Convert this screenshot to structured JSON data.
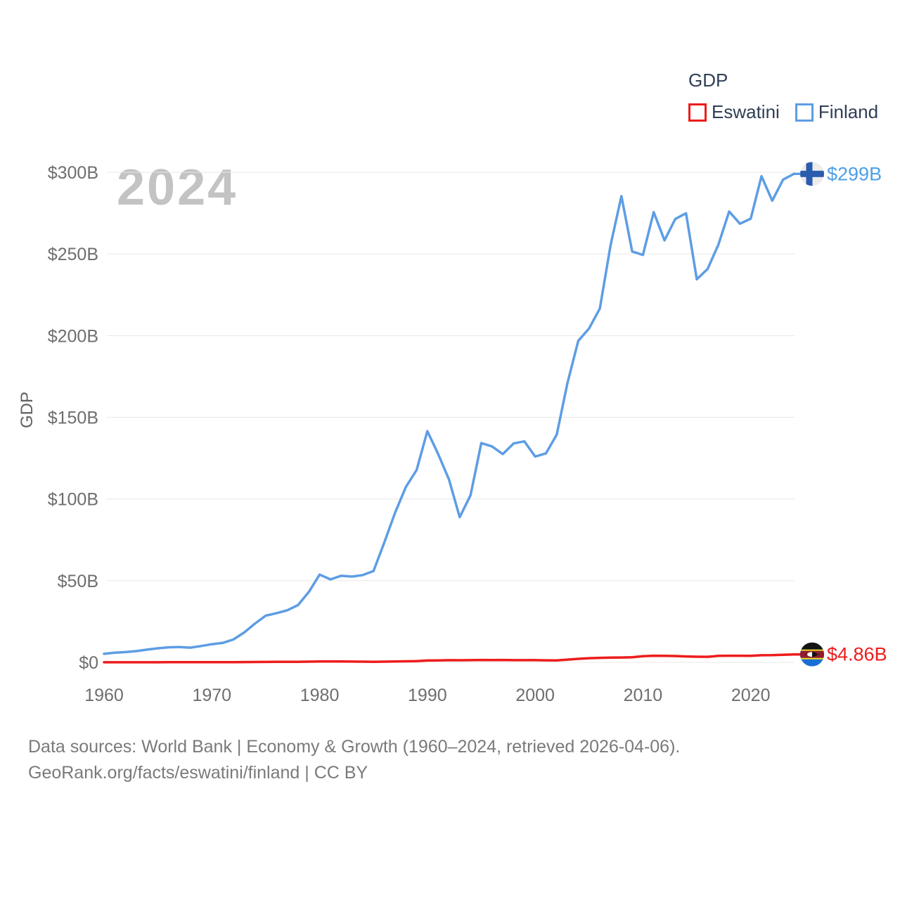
{
  "legend": {
    "title": "GDP",
    "items": [
      {
        "label": "Eswatini",
        "color": "#ee1c1c"
      },
      {
        "label": "Finland",
        "color": "#5d9de4"
      }
    ]
  },
  "watermark": "2024",
  "chart_data": {
    "type": "line",
    "title": "GDP",
    "ylabel": "GDP",
    "xlabel": "",
    "x_range": [
      1960,
      2024
    ],
    "ylim": [
      0,
      300
    ],
    "grid": "horizontal",
    "legend_position": "top-right",
    "x_ticks": [
      1960,
      1970,
      1980,
      1990,
      2000,
      2010,
      2020
    ],
    "y_ticks": [
      {
        "value": 0,
        "label": "$0"
      },
      {
        "value": 50,
        "label": "$50B"
      },
      {
        "value": 100,
        "label": "$100B"
      },
      {
        "value": 150,
        "label": "$150B"
      },
      {
        "value": 200,
        "label": "$200B"
      },
      {
        "value": 250,
        "label": "$250B"
      },
      {
        "value": 300,
        "label": "$300B"
      }
    ],
    "years": [
      1960,
      1961,
      1962,
      1963,
      1964,
      1965,
      1966,
      1967,
      1968,
      1969,
      1970,
      1971,
      1972,
      1973,
      1974,
      1975,
      1976,
      1977,
      1978,
      1979,
      1980,
      1981,
      1982,
      1983,
      1984,
      1985,
      1986,
      1987,
      1988,
      1989,
      1990,
      1991,
      1992,
      1993,
      1994,
      1995,
      1996,
      1997,
      1998,
      1999,
      2000,
      2001,
      2002,
      2003,
      2004,
      2005,
      2006,
      2007,
      2008,
      2009,
      2010,
      2011,
      2012,
      2013,
      2014,
      2015,
      2016,
      2017,
      2018,
      2019,
      2020,
      2021,
      2022,
      2023,
      2024
    ],
    "series": [
      {
        "name": "Eswatini",
        "color": "#ee1c1c",
        "end_label": "$4.86B",
        "end_label_color": "#ee1c1c",
        "flag": "eswatini",
        "values": [
          0.04,
          0.04,
          0.05,
          0.05,
          0.06,
          0.06,
          0.07,
          0.08,
          0.09,
          0.1,
          0.12,
          0.14,
          0.15,
          0.19,
          0.23,
          0.26,
          0.28,
          0.32,
          0.36,
          0.44,
          0.54,
          0.56,
          0.52,
          0.49,
          0.44,
          0.33,
          0.41,
          0.52,
          0.63,
          0.72,
          1.13,
          1.19,
          1.33,
          1.3,
          1.32,
          1.45,
          1.44,
          1.47,
          1.35,
          1.35,
          1.39,
          1.23,
          1.17,
          1.66,
          2.17,
          2.55,
          2.77,
          2.94,
          2.95,
          3.14,
          3.77,
          4.05,
          3.94,
          3.86,
          3.62,
          3.44,
          3.39,
          3.94,
          4.03,
          4.04,
          3.98,
          4.35,
          4.4,
          4.59,
          4.86
        ]
      },
      {
        "name": "Finland",
        "color": "#5d9de4",
        "end_label": "$299B",
        "end_label_color": "#4d9fe8",
        "flag": "finland",
        "values": [
          5.2,
          5.9,
          6.3,
          6.9,
          7.8,
          8.6,
          9.2,
          9.4,
          9.0,
          10.0,
          11.1,
          11.9,
          14.0,
          18.3,
          23.7,
          28.6,
          30.1,
          31.9,
          35.1,
          43.1,
          53.7,
          50.8,
          53.0,
          52.5,
          53.4,
          55.9,
          73.3,
          91.6,
          107.3,
          117.7,
          141.5,
          127.5,
          112.0,
          88.9,
          102.3,
          134.2,
          132.2,
          127.5,
          134.0,
          135.3,
          126.0,
          127.9,
          139.4,
          171.1,
          196.8,
          204.4,
          216.6,
          255.4,
          285.4,
          251.5,
          249.4,
          275.6,
          258.3,
          271.4,
          274.9,
          234.5,
          240.8,
          255.7,
          276.0,
          268.5,
          271.6,
          297.6,
          282.6,
          295.5,
          299.0
        ]
      }
    ]
  },
  "footer": {
    "line1": "Data sources: World Bank | Economy & Growth (1960–2024, retrieved 2026-04-06).",
    "line2": "GeoRank.org/facts/eswatini/finland | CC BY"
  }
}
